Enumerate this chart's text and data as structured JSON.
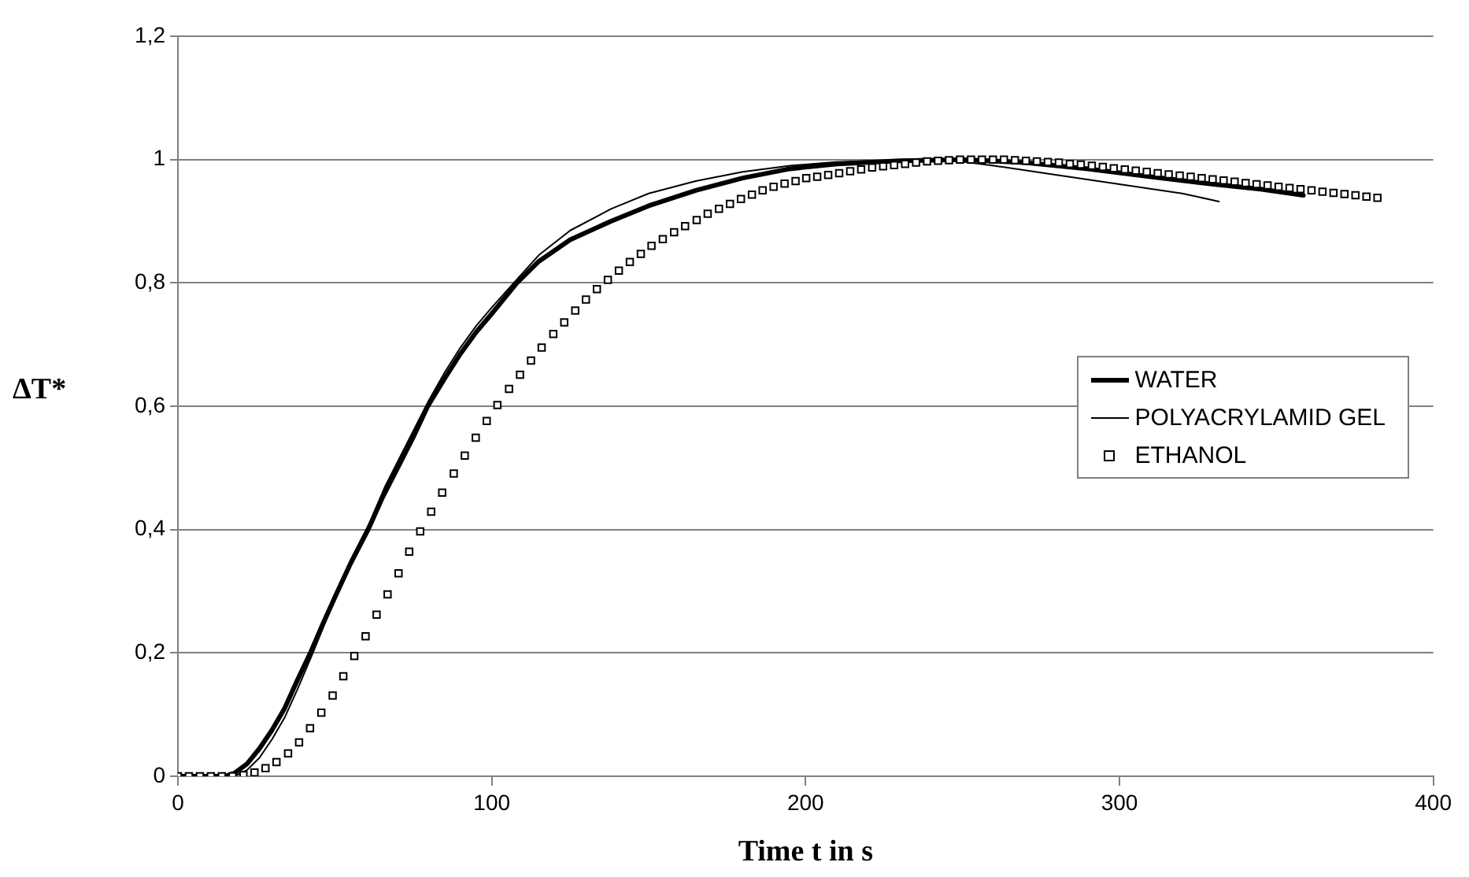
{
  "chart_data": {
    "type": "line",
    "xlabel": "Time t in s",
    "ylabel": "ΔT*",
    "xlim": [
      0,
      400
    ],
    "xticks": [
      0,
      100,
      200,
      300,
      400
    ],
    "ylim": [
      0,
      1.2
    ],
    "yticks": [
      {
        "value": 0,
        "label": "0"
      },
      {
        "value": 0.2,
        "label": "0,2"
      },
      {
        "value": 0.4,
        "label": "0,4"
      },
      {
        "value": 0.6,
        "label": "0,6"
      },
      {
        "value": 0.8,
        "label": "0,8"
      },
      {
        "value": 1,
        "label": "1"
      },
      {
        "value": 1.2,
        "label": "1,2"
      }
    ],
    "grid": "y",
    "legend": "right",
    "series": [
      {
        "name": "WATER",
        "type": "line",
        "color": "#000000",
        "marker": "none",
        "x": [
          0,
          15,
          18,
          22,
          26,
          30,
          34,
          38,
          42.2,
          46,
          50,
          55,
          60.6,
          65,
          70,
          75,
          79.6,
          85,
          90,
          95,
          100,
          108,
          115,
          125,
          138,
          150,
          165,
          180,
          195,
          210,
          230,
          250,
          270,
          290,
          310,
          330,
          345,
          358.6
        ],
        "values": [
          0,
          0,
          0.005,
          0.02,
          0.045,
          0.075,
          0.11,
          0.155,
          0.2,
          0.245,
          0.29,
          0.345,
          0.4,
          0.45,
          0.5,
          0.55,
          0.6,
          0.645,
          0.685,
          0.72,
          0.75,
          0.8,
          0.835,
          0.87,
          0.9,
          0.925,
          0.95,
          0.97,
          0.985,
          0.993,
          0.998,
          1,
          0.995,
          0.985,
          0.972,
          0.96,
          0.952,
          0.942
        ]
      },
      {
        "name": "POLYACRYLAMID GEL",
        "type": "line",
        "color": "#000000",
        "marker": "none",
        "x": [
          0,
          18,
          22,
          26,
          30,
          34,
          38,
          43,
          47,
          52,
          56,
          61,
          66,
          71,
          76,
          80,
          85,
          90,
          95,
          100,
          107,
          115,
          125,
          138,
          150,
          165,
          180,
          195,
          210,
          230,
          245,
          260,
          280,
          300,
          320,
          331.7
        ],
        "values": [
          0,
          0,
          0.01,
          0.03,
          0.06,
          0.095,
          0.14,
          0.2,
          0.25,
          0.31,
          0.36,
          0.41,
          0.47,
          0.52,
          0.57,
          0.61,
          0.655,
          0.695,
          0.73,
          0.76,
          0.8,
          0.845,
          0.885,
          0.92,
          0.945,
          0.965,
          0.98,
          0.99,
          0.996,
          0.999,
          1,
          0.99,
          0.975,
          0.96,
          0.945,
          0.932
        ]
      },
      {
        "name": "ETHANOL",
        "type": "scatter",
        "color": "#000000",
        "marker": "square",
        "x": [
          0,
          3.5,
          7,
          10.5,
          14,
          17.4,
          20.9,
          24.4,
          27.9,
          31.4,
          35.1,
          38.6,
          42.1,
          45.7,
          49.3,
          52.7,
          56.2,
          59.8,
          63.3,
          66.8,
          70.3,
          73.7,
          77.2,
          80.7,
          84.2,
          87.9,
          91.4,
          94.9,
          98.4,
          101.8,
          105.5,
          109,
          112.5,
          115.9,
          119.6,
          123.1,
          126.6,
          130,
          133.5,
          137,
          140.5,
          144,
          147.5,
          150.9,
          154.5,
          158.1,
          161.6,
          165.3,
          168.8,
          172.4,
          175.9,
          179.4,
          182.9,
          186.3,
          189.8,
          193.3,
          196.8,
          200.2,
          203.7,
          207.2,
          210.7,
          214.2,
          217.7,
          221.2,
          224.7,
          228.2,
          231.7,
          235.2,
          238.7,
          242.2,
          245.7,
          249.2,
          252.7,
          256.2,
          259.7,
          263.2,
          266.7,
          270.2,
          273.7,
          277.2,
          280.7,
          284.2,
          287.7,
          291.2,
          294.7,
          298.2,
          301.7,
          305.2,
          308.7,
          312.2,
          315.7,
          319.2,
          322.7,
          326.2,
          329.7,
          333.2,
          336.7,
          340.2,
          343.7,
          347.2,
          350.7,
          354.2,
          357.7,
          361.2,
          364.7,
          368.2,
          371.7,
          375.2,
          378.7,
          382.2
        ],
        "values": [
          0,
          0,
          0,
          0,
          0,
          0,
          0.002,
          0.006,
          0.013,
          0.023,
          0.037,
          0.055,
          0.078,
          0.103,
          0.131,
          0.162,
          0.195,
          0.227,
          0.262,
          0.295,
          0.329,
          0.364,
          0.397,
          0.429,
          0.46,
          0.491,
          0.52,
          0.549,
          0.576,
          0.602,
          0.628,
          0.651,
          0.674,
          0.695,
          0.717,
          0.736,
          0.755,
          0.773,
          0.79,
          0.805,
          0.82,
          0.834,
          0.847,
          0.86,
          0.871,
          0.882,
          0.892,
          0.902,
          0.912,
          0.92,
          0.928,
          0.936,
          0.943,
          0.95,
          0.956,
          0.961,
          0.965,
          0.97,
          0.972,
          0.975,
          0.978,
          0.981,
          0.984,
          0.987,
          0.989,
          0.991,
          0.993,
          0.995,
          0.997,
          0.998,
          0.999,
          1,
          1,
          1,
          1,
          1,
          0.999,
          0.998,
          0.997,
          0.996,
          0.995,
          0.993,
          0.992,
          0.99,
          0.988,
          0.986,
          0.984,
          0.982,
          0.98,
          0.978,
          0.976,
          0.974,
          0.972,
          0.97,
          0.968,
          0.966,
          0.964,
          0.962,
          0.96,
          0.958,
          0.956,
          0.954,
          0.952,
          0.95,
          0.948,
          0.946,
          0.944,
          0.942,
          0.94,
          0.938
        ]
      }
    ]
  }
}
